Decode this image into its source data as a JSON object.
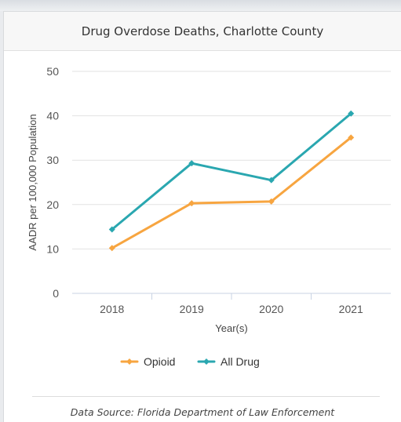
{
  "card": {
    "title": "Drug Overdose Deaths, Charlotte County",
    "source": "Data Source: Florida Department of Law Enforcement"
  },
  "chart_data": {
    "type": "line",
    "categories": [
      "2018",
      "2019",
      "2020",
      "2021"
    ],
    "series": [
      {
        "name": "Opioid",
        "color": "#f7a540",
        "values": [
          10.2,
          20.3,
          20.7,
          35.1
        ]
      },
      {
        "name": "All Drug",
        "color": "#2aa7b0",
        "values": [
          14.4,
          29.3,
          25.5,
          40.5
        ]
      }
    ],
    "title": "Drug Overdose Deaths, Charlotte County",
    "xlabel": "Year(s)",
    "ylabel": "AADR per 100,000 Population",
    "ylim": [
      0,
      50
    ],
    "yticks": [
      0,
      10,
      20,
      30,
      40,
      50
    ],
    "grid": true,
    "legend_position": "bottom"
  }
}
